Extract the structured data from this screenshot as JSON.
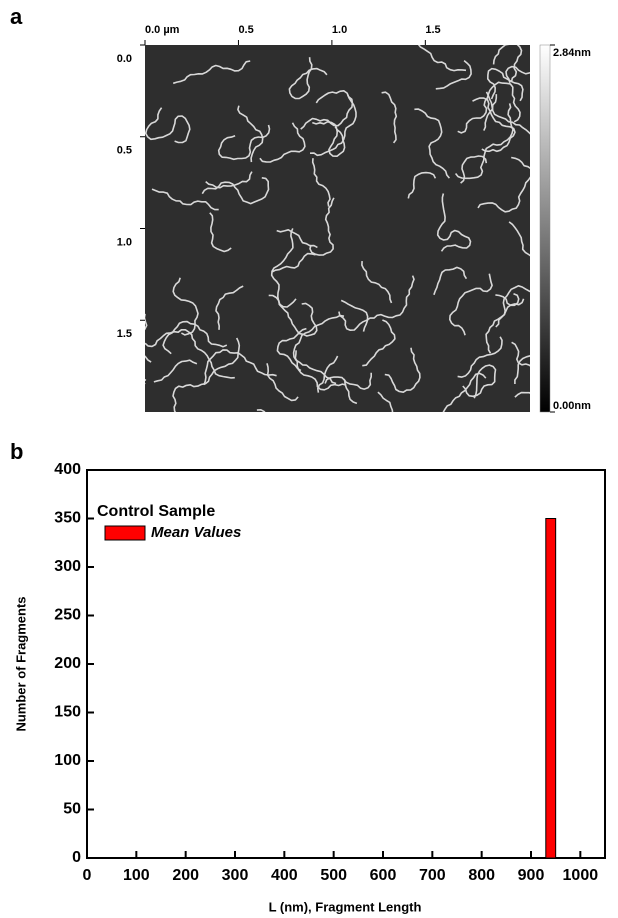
{
  "chart_data": [
    {
      "type": "image",
      "panel_label": "a",
      "xticks": [
        {
          "value": 0,
          "label": "0.0 µm"
        },
        0.5,
        {
          "value": 1,
          "label": "1.0"
        },
        1.5
      ],
      "yticks": [
        {
          "value": 0,
          "label": "0.0"
        },
        0.5,
        {
          "value": 1,
          "label": "1.0"
        },
        1.5
      ],
      "xlim": [
        0,
        2.06
      ],
      "ylim": [
        0,
        2.0
      ],
      "clim": [
        0,
        2.84
      ],
      "cticks": [
        {
          "value": 0,
          "label": "0.00nm"
        },
        {
          "value": 2.84,
          "label": "2.84nm"
        }
      ]
    },
    {
      "type": "histogram",
      "panel_label": "b",
      "legend_title": "Control Sample",
      "xlabel": "L (nm),  Fragment Length",
      "ylabel": "Number of Fragments",
      "bins": [
        930,
        950
      ],
      "series": [
        {
          "name": "Mean Values",
          "color": "#ff0000",
          "values": [
            350
          ]
        }
      ],
      "xlim": [
        0,
        1050
      ],
      "ylim": [
        0,
        400
      ],
      "xticks": [
        0,
        100,
        200,
        300,
        400,
        500,
        600,
        700,
        800,
        900,
        1000
      ],
      "yticks": [
        0,
        50,
        100,
        150,
        200,
        250,
        300,
        350,
        400
      ],
      "legend": "upper left"
    }
  ]
}
